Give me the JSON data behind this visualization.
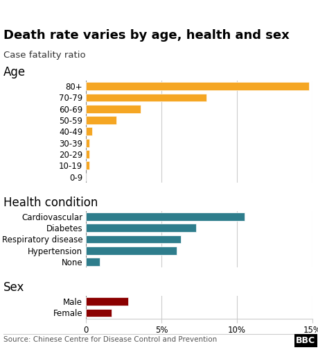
{
  "title": "Death rate varies by age, health and sex",
  "subtitle": "Case fatality ratio",
  "source": "Source: Chinese Centre for Disease Control and Prevention",
  "xlim": [
    0,
    15
  ],
  "xtick_vals": [
    0,
    5,
    10,
    15
  ],
  "xtick_labels": [
    "0",
    "5%",
    "10%",
    "15%"
  ],
  "age_section_label": "Age",
  "age_categories": [
    "80+",
    "70-79",
    "60-69",
    "50-59",
    "40-49",
    "30-39",
    "20-29",
    "10-19",
    "0-9"
  ],
  "age_values": [
    14.8,
    8.0,
    3.6,
    2.0,
    0.4,
    0.2,
    0.2,
    0.2,
    0.0
  ],
  "age_color": "#F5A623",
  "health_section_label": "Health condition",
  "health_categories": [
    "Cardiovascular",
    "Diabetes",
    "Respiratory disease",
    "Hypertension",
    "None"
  ],
  "health_values": [
    10.5,
    7.3,
    6.3,
    6.0,
    0.9
  ],
  "health_color": "#2E7D8C",
  "sex_section_label": "Sex",
  "sex_categories": [
    "Male",
    "Female"
  ],
  "sex_values": [
    2.8,
    1.7
  ],
  "sex_color": "#8B0000",
  "background_color": "#ffffff",
  "title_fontsize": 13,
  "subtitle_fontsize": 9.5,
  "section_fontsize": 12,
  "tick_fontsize": 8.5,
  "label_fontsize": 8.5,
  "source_fontsize": 7.5,
  "grid_color": "#cccccc",
  "bar_edge_color": "white"
}
